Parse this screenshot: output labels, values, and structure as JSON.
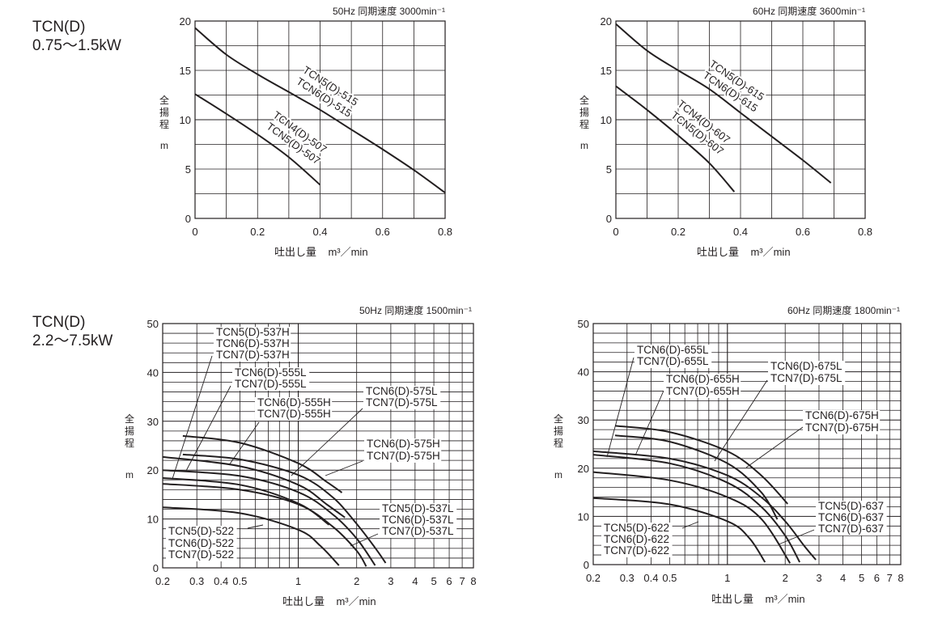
{
  "groups": [
    {
      "model": "TCN(D)",
      "power": "0.75〜1.5kW"
    },
    {
      "model": "TCN(D)",
      "power": "2.2〜7.5kW"
    }
  ],
  "chart_data": [
    {
      "type": "line",
      "title": "50Hz 同期速度 3000min⁻¹",
      "xlabel": "吐出し量",
      "xunit": "m³／min",
      "ylabel": [
        "全",
        "揚",
        "程"
      ],
      "yunit": "m",
      "xscale": "linear",
      "xlim": [
        0,
        0.8
      ],
      "ylim": [
        0,
        20
      ],
      "grid": true,
      "xticks": [
        0,
        0.2,
        0.4,
        0.6,
        0.8
      ],
      "xtick_labels": [
        "0",
        "0.2",
        "0.4",
        "0.6",
        "0.8"
      ],
      "yticks": [
        0,
        5,
        10,
        15,
        20
      ],
      "ytick_labels": [
        "0",
        "5",
        "10",
        "15",
        "20"
      ],
      "line_color": "#231f20",
      "series": [
        {
          "x": [
            0,
            0.1,
            0.2,
            0.3,
            0.4,
            0.5,
            0.6,
            0.7,
            0.8
          ],
          "y": [
            19.3,
            16.6,
            14.6,
            12.8,
            11.0,
            9.0,
            7.0,
            4.9,
            2.6
          ]
        },
        {
          "x": [
            0,
            0.1,
            0.2,
            0.3,
            0.4
          ],
          "y": [
            12.6,
            10.6,
            8.5,
            6.2,
            3.4
          ]
        }
      ],
      "annotations": [
        {
          "lines": [
            "TCN5(D)-515",
            "TCN6(D)-515"
          ]
        },
        {
          "lines": [
            "TCN4(D)-507",
            "TCN5(D)-507"
          ]
        }
      ]
    },
    {
      "type": "line",
      "title": "60Hz 同期速度 3600min⁻¹",
      "xlabel": "吐出し量",
      "xunit": "m³／min",
      "ylabel": [
        "全",
        "揚",
        "程"
      ],
      "yunit": "m",
      "xscale": "linear",
      "xlim": [
        0,
        0.8
      ],
      "ylim": [
        0,
        20
      ],
      "grid": true,
      "xticks": [
        0,
        0.2,
        0.4,
        0.6,
        0.8
      ],
      "xtick_labels": [
        "0",
        "0.2",
        "0.4",
        "0.6",
        "0.8"
      ],
      "yticks": [
        0,
        5,
        10,
        15,
        20
      ],
      "ytick_labels": [
        "0",
        "5",
        "10",
        "15",
        "20"
      ],
      "line_color": "#231f20",
      "series": [
        {
          "x": [
            0,
            0.1,
            0.2,
            0.3,
            0.4,
            0.5,
            0.6,
            0.69
          ],
          "y": [
            19.7,
            17.0,
            15.0,
            13.1,
            10.7,
            8.3,
            5.9,
            3.6
          ]
        },
        {
          "x": [
            0,
            0.1,
            0.2,
            0.3,
            0.38
          ],
          "y": [
            13.4,
            11.0,
            8.4,
            5.6,
            2.7
          ]
        }
      ],
      "annotations": [
        {
          "lines": [
            "TCN5(D)-615",
            "TCN6(D)-615"
          ]
        },
        {
          "lines": [
            "TCN4(D)-607",
            "TCN5(D)-607"
          ]
        }
      ]
    },
    {
      "type": "line",
      "title": "50Hz 同期速度 1500min⁻¹",
      "xlabel": "吐出し量",
      "xunit": "m³／min",
      "ylabel": [
        "全",
        "揚",
        "程"
      ],
      "yunit": "m",
      "xscale": "log",
      "xlim": [
        0.2,
        8
      ],
      "ylim": [
        0,
        50
      ],
      "grid": true,
      "xticks": [
        0.2,
        0.3,
        0.4,
        0.5,
        1,
        2,
        3,
        4,
        5,
        6,
        7,
        8
      ],
      "xtick_labels": [
        "0.2",
        "0.3",
        "0.4",
        "0.5",
        "1",
        "2",
        "3",
        "4",
        "5",
        "6",
        "7",
        "8"
      ],
      "yticks": [
        0,
        10,
        20,
        30,
        40,
        50
      ],
      "ytick_labels": [
        "0",
        "10",
        "20",
        "30",
        "40",
        "50"
      ],
      "line_color": "#231f20",
      "series": [
        {
          "x": [
            0.254,
            0.5,
            1,
            1.4,
            1.68
          ],
          "y": [
            27,
            25.6,
            21.4,
            17.6,
            15.4
          ]
        },
        {
          "x": [
            0.254,
            0.5,
            1,
            1.5,
            2,
            2.5,
            2.82
          ],
          "y": [
            23.2,
            22.2,
            19,
            14.5,
            9,
            4,
            1
          ]
        },
        {
          "x": [
            0.2,
            0.5,
            1,
            1.4,
            1.74
          ],
          "y": [
            22.7,
            20.8,
            17,
            13,
            10.3
          ]
        },
        {
          "x": [
            0.2,
            0.5,
            1,
            1.5,
            2,
            2.49
          ],
          "y": [
            20,
            18.8,
            15.5,
            11,
            6,
            0.5
          ]
        },
        {
          "x": [
            0.2,
            0.5,
            1,
            1.44
          ],
          "y": [
            18.4,
            17,
            13.2,
            8.8
          ]
        },
        {
          "x": [
            0.2,
            0.5,
            1,
            1.5,
            2,
            2.24
          ],
          "y": [
            17.2,
            16,
            13,
            8.5,
            3.5,
            0.3
          ]
        },
        {
          "x": [
            0.2,
            0.5,
            1,
            1.3,
            1.62
          ],
          "y": [
            12.4,
            11.2,
            7.8,
            4.5,
            0.5
          ]
        }
      ],
      "annotations": [
        {
          "lines": [
            "TCN5(D)-537H",
            "TCN6(D)-537H",
            "TCN7(D)-537H"
          ]
        },
        {
          "lines": [
            "TCN6(D)-555L",
            "TCN7(D)-555L"
          ]
        },
        {
          "lines": [
            "TCN6(D)-555H",
            "TCN7(D)-555H"
          ]
        },
        {
          "lines": [
            "TCN6(D)-575L",
            "TCN7(D)-575L"
          ]
        },
        {
          "lines": [
            "TCN6(D)-575H",
            "TCN7(D)-575H"
          ]
        },
        {
          "lines": [
            "TCN5(D)-537L",
            "TCN6(D)-537L",
            "TCN7(D)-537L"
          ]
        },
        {
          "lines": [
            "TCN5(D)-522",
            "TCN6(D)-522",
            "TCN7(D)-522"
          ]
        }
      ]
    },
    {
      "type": "line",
      "title": "60Hz 同期速度 1800min⁻¹",
      "xlabel": "吐出し量",
      "xunit": "m³／min",
      "ylabel": [
        "全",
        "揚",
        "程"
      ],
      "yunit": "m",
      "xscale": "log",
      "xlim": [
        0.2,
        8
      ],
      "ylim": [
        0,
        50
      ],
      "grid": true,
      "xticks": [
        0.2,
        0.3,
        0.4,
        0.5,
        1,
        2,
        3,
        4,
        5,
        6,
        7,
        8
      ],
      "xtick_labels": [
        "0.2",
        "0.3",
        "0.4",
        "0.5",
        "1",
        "2",
        "3",
        "4",
        "5",
        "6",
        "7",
        "8"
      ],
      "yticks": [
        0,
        10,
        20,
        30,
        40,
        50
      ],
      "ytick_labels": [
        "0",
        "10",
        "20",
        "30",
        "40",
        "50"
      ],
      "line_color": "#231f20",
      "series": [
        {
          "x": [
            0.26,
            0.5,
            1,
            1.5,
            2.06
          ],
          "y": [
            28.8,
            27.5,
            23.5,
            18.5,
            12.6
          ]
        },
        {
          "x": [
            0.26,
            0.5,
            1,
            1.5,
            1.82
          ],
          "y": [
            26.8,
            25.5,
            21,
            15,
            9.4
          ]
        },
        {
          "x": [
            0.2,
            0.5,
            1,
            1.5,
            2,
            2.5,
            2.89
          ],
          "y": [
            23.5,
            22,
            18.5,
            14,
            9,
            4,
            1
          ]
        },
        {
          "x": [
            0.2,
            0.5,
            1,
            1.5,
            2,
            2.38
          ],
          "y": [
            22.8,
            21,
            17,
            12,
            6,
            0.5
          ]
        },
        {
          "x": [
            0.2,
            0.5,
            1,
            1.5,
            2.12
          ],
          "y": [
            19.2,
            17.5,
            14,
            9.5,
            0.3
          ]
        },
        {
          "x": [
            0.2,
            0.5,
            1,
            1.3,
            1.57
          ],
          "y": [
            13.8,
            12.5,
            9,
            5.5,
            0.5
          ]
        }
      ],
      "annotations": [
        {
          "lines": [
            "TCN6(D)-655L",
            "TCN7(D)-655L"
          ]
        },
        {
          "lines": [
            "TCN6(D)-655H",
            "TCN7(D)-655H"
          ]
        },
        {
          "lines": [
            "TCN6(D)-675L",
            "TCN7(D)-675L"
          ]
        },
        {
          "lines": [
            "TCN6(D)-675H",
            "TCN7(D)-675H"
          ]
        },
        {
          "lines": [
            "TCN5(D)-637",
            "TCN6(D)-637",
            "TCN7(D)-637"
          ]
        },
        {
          "lines": [
            "TCN5(D)-622",
            "TCN6(D)-622",
            "TCN7(D)-622"
          ]
        }
      ]
    }
  ]
}
